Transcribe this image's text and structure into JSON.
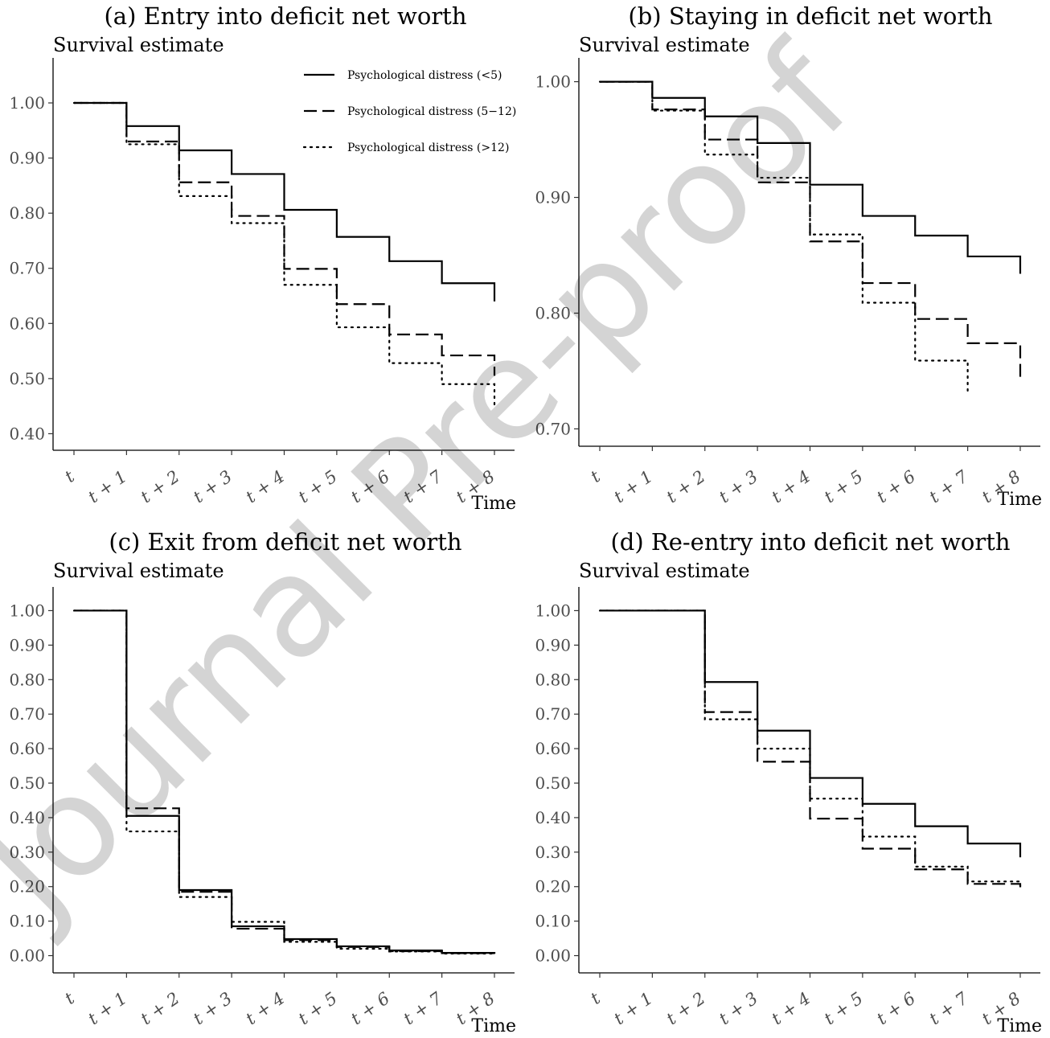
{
  "watermark": "Journal Pre-proof",
  "legend": {
    "entries": [
      {
        "label": "Psychological distress (<5)",
        "style": "solid"
      },
      {
        "label": "Psychological distress (5−12)",
        "style": "dashed"
      },
      {
        "label": "Psychological distress (>12)",
        "style": "dotted"
      }
    ]
  },
  "chart_data": [
    {
      "type": "line",
      "step": true,
      "title": "(a) Entry into deficit net worth",
      "ylabel": "Survival estimate",
      "xlabel": "Time",
      "x_ticks": [
        "t",
        "t + 1",
        "t + 2",
        "t + 3",
        "t + 4",
        "t + 5",
        "t + 6",
        "t + 7",
        "t + 8"
      ],
      "y_ticks": [
        "0.40",
        "0.50",
        "0.60",
        "0.70",
        "0.80",
        "0.90",
        "1.00"
      ],
      "ylim": [
        0.37,
        1.07
      ],
      "series": [
        {
          "style": "solid",
          "values": [
            1.0,
            0.958,
            0.914,
            0.871,
            0.806,
            0.757,
            0.713,
            0.673,
            0.64
          ]
        },
        {
          "style": "dashed",
          "values": [
            1.0,
            0.93,
            0.856,
            0.795,
            0.699,
            0.635,
            0.58,
            0.542,
            0.505
          ]
        },
        {
          "style": "dotted",
          "values": [
            1.0,
            0.925,
            0.831,
            0.782,
            0.67,
            0.593,
            0.528,
            0.49,
            0.445
          ]
        }
      ]
    },
    {
      "type": "line",
      "step": true,
      "title": "(b) Staying in deficit net worth",
      "ylabel": "Survival estimate",
      "xlabel": "Time",
      "x_ticks": [
        "t",
        "t + 1",
        "t + 2",
        "t + 3",
        "t + 4",
        "t + 5",
        "t + 6",
        "t + 7",
        "t + 8"
      ],
      "y_ticks": [
        "0.70",
        "0.80",
        "0.90",
        "1.00"
      ],
      "ylim": [
        0.685,
        1.015
      ],
      "series": [
        {
          "style": "solid",
          "values": [
            1.0,
            0.986,
            0.97,
            0.947,
            0.911,
            0.884,
            0.867,
            0.849,
            0.834
          ]
        },
        {
          "style": "dashed",
          "values": [
            1.0,
            0.976,
            0.95,
            0.913,
            0.862,
            0.826,
            0.795,
            0.774,
            0.742
          ]
        },
        {
          "style": "dotted",
          "values": [
            1.0,
            0.975,
            0.937,
            0.917,
            0.868,
            0.809,
            0.759,
            0.733
          ]
        }
      ]
    },
    {
      "type": "line",
      "step": true,
      "title": "(c) Exit from deficit net worth",
      "ylabel": "Survival estimate",
      "xlabel": "Time",
      "x_ticks": [
        "t",
        "t + 1",
        "t + 2",
        "t + 3",
        "t + 4",
        "t + 5",
        "t + 6",
        "t + 7",
        "t + 8"
      ],
      "y_ticks": [
        "0.00",
        "0.10",
        "0.20",
        "0.30",
        "0.40",
        "0.50",
        "0.60",
        "0.70",
        "0.80",
        "0.90",
        "1.00"
      ],
      "ylim": [
        -0.05,
        1.05
      ],
      "series": [
        {
          "style": "solid",
          "values": [
            1.0,
            0.405,
            0.19,
            0.085,
            0.048,
            0.027,
            0.015,
            0.008,
            0.006
          ]
        },
        {
          "style": "dashed",
          "values": [
            1.0,
            0.427,
            0.185,
            0.078,
            0.045,
            0.025,
            0.013,
            0.007,
            0.005
          ]
        },
        {
          "style": "dotted",
          "values": [
            1.0,
            0.36,
            0.17,
            0.098,
            0.04,
            0.02,
            0.012,
            0.006,
            0.005
          ]
        }
      ]
    },
    {
      "type": "line",
      "step": true,
      "title": "(d) Re-entry into deficit net worth",
      "ylabel": "Survival estimate",
      "xlabel": "Time",
      "x_ticks": [
        "t",
        "t + 1",
        "t + 2",
        "t + 3",
        "t + 4",
        "t + 5",
        "t + 6",
        "t + 7",
        "t + 8"
      ],
      "y_ticks": [
        "0.00",
        "0.10",
        "0.20",
        "0.30",
        "0.40",
        "0.50",
        "0.60",
        "0.70",
        "0.80",
        "0.90",
        "1.00"
      ],
      "ylim": [
        -0.05,
        1.05
      ],
      "series": [
        {
          "style": "solid",
          "values": [
            1.0,
            1.0,
            0.793,
            0.652,
            0.515,
            0.44,
            0.375,
            0.325,
            0.285
          ]
        },
        {
          "style": "dashed",
          "values": [
            1.0,
            1.0,
            0.706,
            0.562,
            0.397,
            0.31,
            0.25,
            0.208,
            0.19
          ]
        },
        {
          "style": "dotted",
          "values": [
            1.0,
            1.0,
            0.685,
            0.6,
            0.455,
            0.345,
            0.258,
            0.215,
            0.2
          ]
        }
      ]
    }
  ]
}
